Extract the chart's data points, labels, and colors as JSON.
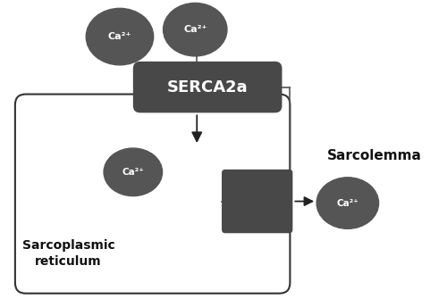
{
  "bg_color": "#ffffff",
  "box_color": "#484848",
  "circle_color": "#555555",
  "text_color_white": "#ffffff",
  "text_color_black": "#111111",
  "figsize": [
    5.0,
    3.44
  ],
  "dpi": 100,
  "serca_text": "SERCA2a",
  "sarcolemma_text": "Sarcolemma",
  "sr_text": "Sarcoplasmic\nreticulum",
  "ca_label": "Ca²⁺"
}
